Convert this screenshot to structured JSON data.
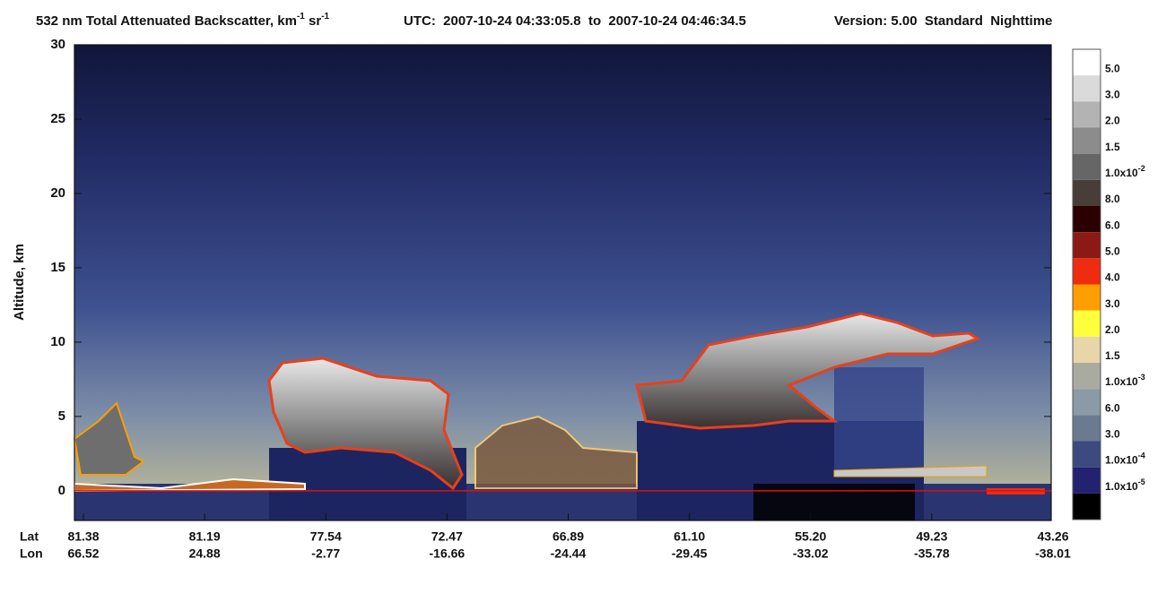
{
  "chart_data": {
    "type": "curtain",
    "title_parts": [
      "532 nm Total Attenuated Backscatter, km",
      "-1",
      " sr",
      "-1"
    ],
    "utc": "UTC:  2007-10-24 04:33:05.8  to  2007-10-24 04:46:34.5",
    "version": "Version: 5.00  Standard  Nighttime",
    "ylabel": "Altitude, km",
    "ylim": [
      -2,
      30
    ],
    "yticks": [
      0,
      5,
      10,
      15,
      20,
      25,
      30
    ],
    "zero_line_color": "#e01010",
    "x_rows": [
      {
        "name": "Lat",
        "labels": [
          "81.38",
          "81.19",
          "77.54",
          "72.47",
          "66.89",
          "61.10",
          "55.20",
          "49.23",
          "43.26"
        ]
      },
      {
        "name": "Lon",
        "labels": [
          "66.52",
          "24.88",
          "-2.77",
          "-16.66",
          "-24.44",
          "-29.45",
          "-33.02",
          "-35.78",
          "-38.01"
        ]
      }
    ],
    "colorbar": {
      "colors": [
        "#ffffff",
        "#dadada",
        "#b3b3b3",
        "#8c8c8c",
        "#666666",
        "#473d39",
        "#2c0000",
        "#8c1a14",
        "#ee2c10",
        "#ff9e00",
        "#ffff3c",
        "#e8d6a8",
        "#a9aba1",
        "#8a9aa6",
        "#6a7a90",
        "#3c4a80",
        "#222270",
        "#000000"
      ],
      "labels": [
        "5.0",
        "3.0",
        "2.0",
        "1.5",
        [
          "1.0x10",
          "-2"
        ],
        "8.0",
        "6.0",
        "5.0",
        "4.0",
        "3.0",
        "2.0",
        "1.5",
        [
          "1.0x10",
          "-3"
        ],
        "6.0",
        "3.0",
        [
          "1.0x10",
          "-4"
        ],
        [
          "1.0x10",
          "-5"
        ]
      ]
    }
  }
}
